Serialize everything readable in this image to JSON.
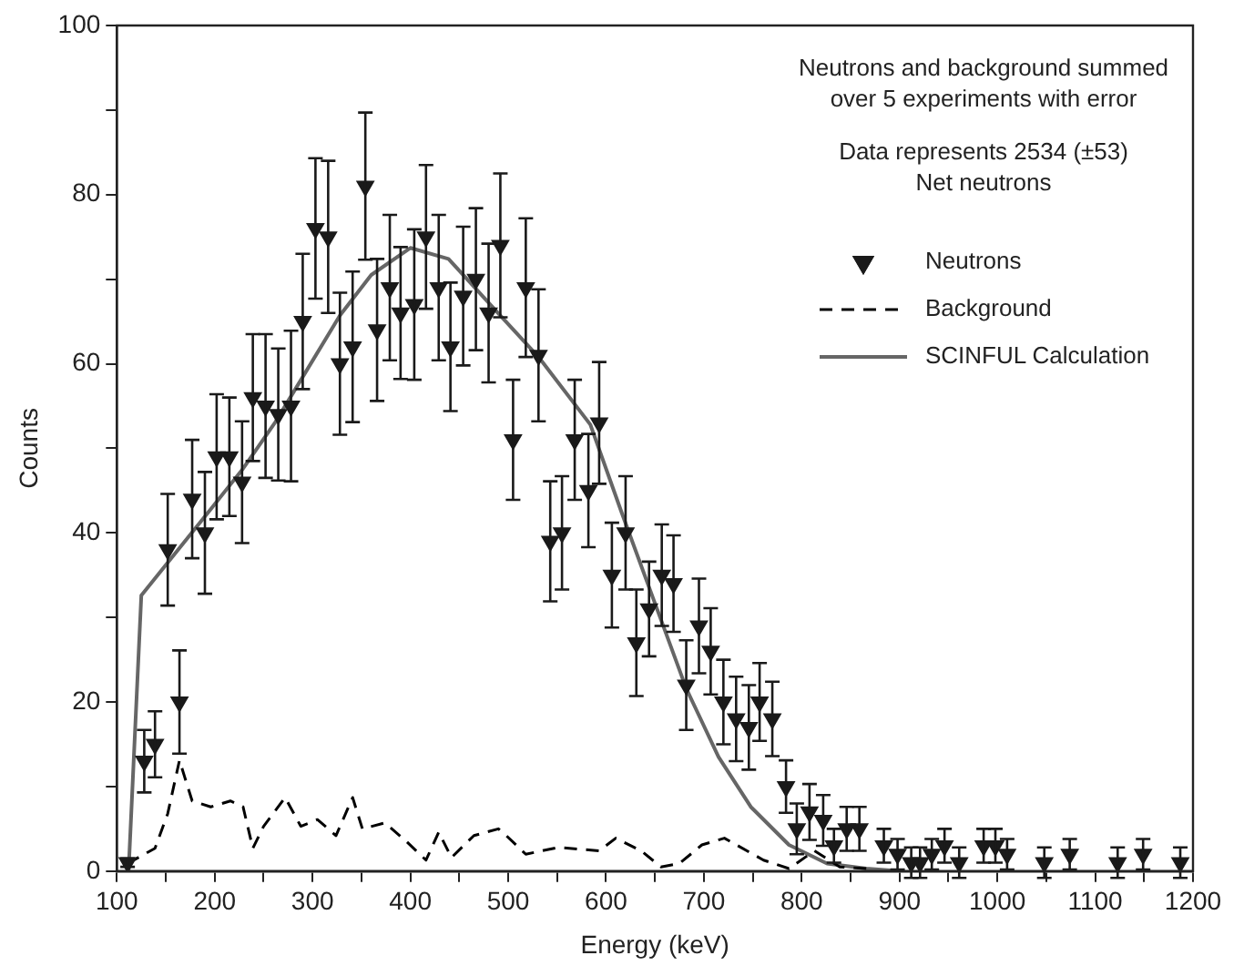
{
  "chart_data": {
    "type": "scatter",
    "xlabel": "Energy (keV)",
    "ylabel": "Counts",
    "xlim": [
      100,
      1200
    ],
    "ylim": [
      0,
      100
    ],
    "xticks": [
      100,
      {
        "value": 150,
        "label": null
      },
      200,
      {
        "value": 250,
        "label": null
      },
      300,
      {
        "value": 350,
        "label": null
      },
      400,
      {
        "value": 450,
        "label": null
      },
      500,
      {
        "value": 550,
        "label": null
      },
      600,
      {
        "value": 650,
        "label": null
      },
      700,
      {
        "value": 750,
        "label": null
      },
      800,
      {
        "value": 850,
        "label": null
      },
      900,
      {
        "value": 950,
        "label": null
      },
      1000,
      {
        "value": 1050,
        "label": null
      },
      1100,
      {
        "value": 1150,
        "label": null
      },
      1200
    ],
    "yticks": [
      0,
      {
        "value": 10,
        "label": null
      },
      20,
      {
        "value": 30,
        "label": null
      },
      40,
      {
        "value": 50,
        "label": null
      },
      60,
      {
        "value": 70,
        "label": null
      },
      80,
      {
        "value": 90,
        "label": null
      },
      100
    ],
    "grid": false,
    "legend": "top right",
    "annotations": [
      "Neutrons and background summed\nover 5 experiments with error",
      "Data represents 2534 (±53)\nNet neutrons"
    ],
    "series": [
      {
        "name": "Neutrons",
        "marker": "triangle",
        "color": "#1a1a1a",
        "x": [
          111,
          128,
          139,
          152,
          164,
          177,
          190,
          202,
          215,
          228,
          239,
          252,
          265,
          278,
          290,
          303,
          316,
          328,
          341,
          354,
          366,
          379,
          390,
          404,
          416,
          429,
          441,
          454,
          467,
          480,
          492,
          505,
          518,
          531,
          543,
          555,
          568,
          582,
          593,
          606,
          620,
          631,
          644,
          657,
          669,
          682,
          695,
          707,
          720,
          733,
          746,
          757,
          770,
          784,
          795,
          808,
          822,
          833,
          846,
          859,
          884,
          898,
          912,
          921,
          933,
          946,
          961,
          986,
          998,
          1010,
          1048,
          1074,
          1123,
          1149,
          1187
        ],
        "values": [
          1,
          13,
          15,
          38,
          20,
          44,
          40,
          49,
          49,
          46,
          56,
          55,
          54,
          55,
          65,
          76,
          75,
          60,
          62,
          81,
          64,
          69,
          66,
          67,
          75,
          69,
          62,
          68,
          70,
          66,
          74,
          51,
          69,
          61,
          39,
          40,
          51,
          45,
          53,
          35,
          40,
          27,
          31,
          35,
          34,
          22,
          29,
          26,
          20,
          18,
          17,
          20,
          18,
          10,
          5,
          7,
          6,
          3,
          5,
          5,
          3,
          2,
          1,
          1,
          2,
          3,
          1,
          3,
          3,
          2,
          1,
          2,
          1,
          2,
          1
        ],
        "errors": [
          0.5,
          3.7,
          3.9,
          6.6,
          6.1,
          7.0,
          7.2,
          7.4,
          7.0,
          7.2,
          7.5,
          8.5,
          7.8,
          8.9,
          8.0,
          8.3,
          9.0,
          8.4,
          8.9,
          8.7,
          8.4,
          8.6,
          7.8,
          8.9,
          8.5,
          8.6,
          7.6,
          8.2,
          8.4,
          8.2,
          8.5,
          7.1,
          8.2,
          7.8,
          7.1,
          6.7,
          7.1,
          6.7,
          7.2,
          6.2,
          6.7,
          6.3,
          5.6,
          6.0,
          5.7,
          5.3,
          5.6,
          5.1,
          5.0,
          5.0,
          5.0,
          4.6,
          4.4,
          3.1,
          3.0,
          3.3,
          3.0,
          2.0,
          2.6,
          2.6,
          2.0,
          1.8,
          1.8,
          1.8,
          1.8,
          2.0,
          1.8,
          2.0,
          2.0,
          1.8,
          1.8,
          1.8,
          1.8,
          1.8,
          1.8
        ]
      },
      {
        "name": "Background",
        "type": "line",
        "marker": "none",
        "line_style": "dashed",
        "color": "#000000",
        "x": [
          111,
          139,
          152,
          164,
          177,
          196,
          216,
          229,
          239,
          250,
          272,
          288,
          305,
          324,
          341,
          351,
          374,
          396,
          416,
          429,
          442,
          465,
          490,
          498,
          518,
          551,
          593,
          610,
          636,
          656,
          675,
          698,
          721,
          761,
          787,
          813,
          839,
          866
        ],
        "values": [
          0.9,
          2.7,
          6.8,
          13.1,
          8.3,
          7.6,
          8.3,
          7.6,
          2.7,
          5.3,
          8.7,
          5.3,
          6.1,
          4.2,
          8.7,
          5.0,
          5.7,
          3.5,
          1.3,
          4.6,
          1.6,
          4.2,
          5.0,
          4.2,
          2.0,
          2.8,
          2.4,
          3.9,
          2.4,
          0.5,
          0.9,
          3.1,
          3.9,
          1.3,
          0.3,
          2.4,
          0.5,
          0.3
        ]
      },
      {
        "name": "SCINFUL Calculation",
        "type": "line",
        "marker": "none",
        "line_style": "solid",
        "color": "#666666",
        "x": [
          112,
          125,
          196,
          229,
          262,
          295,
          328,
          360,
          400,
          439,
          492,
          531,
          584,
          616,
          649,
          682,
          715,
          748,
          787,
          826,
          866,
          900
        ],
        "values": [
          0,
          32.6,
          42.8,
          47.6,
          53.1,
          59.4,
          65.7,
          70.5,
          73.7,
          72.4,
          65.7,
          60.8,
          52.8,
          42.4,
          32,
          21.6,
          13.5,
          7.6,
          3.1,
          0.9,
          0.3,
          0
        ]
      }
    ]
  }
}
